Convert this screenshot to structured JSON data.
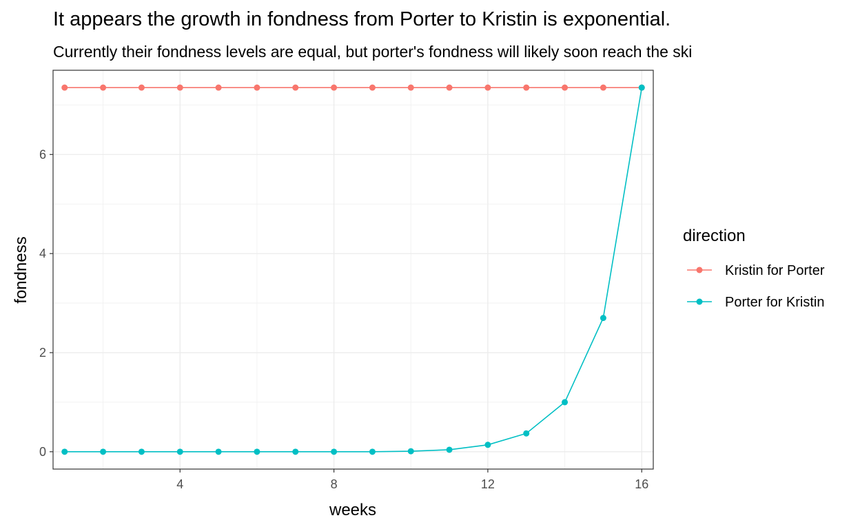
{
  "chart_data": {
    "type": "line",
    "title": "It appears the growth in fondness from Porter to Kristin is exponential.",
    "subtitle": "Currently their fondness levels are equal, but porter's fondness will likely soon reach the ski",
    "xlabel": "weeks",
    "ylabel": "fondness",
    "xlim": [
      0.7,
      16.3
    ],
    "ylim": [
      -0.35,
      7.7
    ],
    "xticks": [
      4,
      8,
      12,
      16
    ],
    "yticks": [
      0,
      2,
      4,
      6
    ],
    "grid": true,
    "legend": {
      "title": "direction",
      "position": "right"
    },
    "x": [
      1,
      2,
      3,
      4,
      5,
      6,
      7,
      8,
      9,
      10,
      11,
      12,
      13,
      14,
      15,
      16
    ],
    "series": [
      {
        "name": "Kristin for Porter",
        "color": "#F8766D",
        "values": [
          7.35,
          7.35,
          7.35,
          7.35,
          7.35,
          7.35,
          7.35,
          7.35,
          7.35,
          7.35,
          7.35,
          7.35,
          7.35,
          7.35,
          7.35,
          7.35
        ]
      },
      {
        "name": "Porter for Kristin",
        "color": "#00BFC4",
        "values": [
          0.0,
          0.0,
          0.0,
          0.0,
          0.0,
          0.0,
          0.0,
          0.0,
          0.0,
          0.01,
          0.04,
          0.14,
          0.37,
          1.0,
          2.7,
          7.35
        ]
      }
    ]
  }
}
